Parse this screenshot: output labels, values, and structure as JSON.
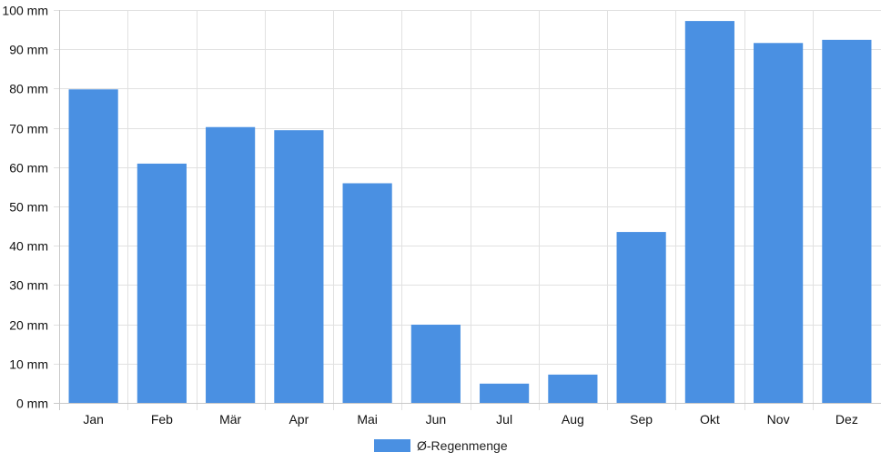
{
  "chart_data": {
    "type": "bar",
    "title": "",
    "xlabel": "",
    "ylabel": "",
    "categories": [
      "Jan",
      "Feb",
      "Mär",
      "Apr",
      "Mai",
      "Jun",
      "Jul",
      "Aug",
      "Sep",
      "Okt",
      "Nov",
      "Dez"
    ],
    "series": [
      {
        "name": "Ø-Regenmenge",
        "values": [
          79.8,
          60.9,
          70.2,
          69.4,
          55.9,
          19.9,
          4.9,
          7.2,
          43.5,
          97.2,
          91.6,
          92.4
        ],
        "color": "#4a90e2"
      }
    ],
    "ylim": [
      0,
      100
    ],
    "yticks": [
      0,
      10,
      20,
      30,
      40,
      50,
      60,
      70,
      80,
      90,
      100
    ],
    "ytick_labels": [
      "0 mm",
      "10 mm",
      "20 mm",
      "30 mm",
      "40 mm",
      "50 mm",
      "60 mm",
      "70 mm",
      "80 mm",
      "90 mm",
      "100 mm"
    ],
    "grid": true,
    "legend_position": "bottom-center"
  }
}
